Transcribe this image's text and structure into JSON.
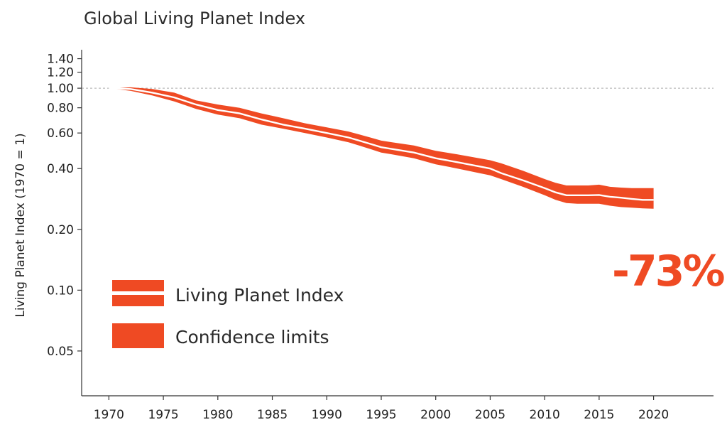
{
  "chart_data": {
    "type": "area",
    "title": "Global Living Planet Index",
    "ylabel": "Living Planet Index (1970 = 1)",
    "xlabel": "",
    "y_scale": "log",
    "xlim": [
      1967.5,
      2025.5
    ],
    "ylim": [
      0.03,
      1.55
    ],
    "x_ticks": [
      1970,
      1975,
      1980,
      1985,
      1990,
      1995,
      2000,
      2005,
      2010,
      2015,
      2020
    ],
    "x_tick_labels": [
      "1970",
      "1975",
      "1980",
      "1985",
      "1990",
      "1995",
      "2000",
      "2005",
      "2010",
      "2015",
      "2020"
    ],
    "y_ticks": [
      0.05,
      0.1,
      0.2,
      0.4,
      0.6,
      0.8,
      1.0,
      1.2,
      1.4
    ],
    "y_tick_labels": [
      "0.05",
      "0.10",
      "0.20",
      "0.40",
      "0.60",
      "0.80",
      "1.00",
      "1.20",
      "1.40"
    ],
    "reference_line": 1.0,
    "x": [
      1970,
      1972,
      1974,
      1976,
      1978,
      1980,
      1982,
      1984,
      1986,
      1988,
      1990,
      1992,
      1994,
      1995,
      1996,
      1998,
      2000,
      2002,
      2004,
      2005,
      2006,
      2008,
      2010,
      2011,
      2012,
      2013,
      2014,
      2015,
      2016,
      2017,
      2018,
      2019,
      2020
    ],
    "series": [
      {
        "name": "Living Planet Index",
        "values": [
          1.0,
          0.99,
          0.95,
          0.9,
          0.83,
          0.78,
          0.75,
          0.7,
          0.66,
          0.63,
          0.6,
          0.57,
          0.53,
          0.51,
          0.5,
          0.48,
          0.45,
          0.43,
          0.41,
          0.4,
          0.38,
          0.35,
          0.32,
          0.305,
          0.295,
          0.295,
          0.295,
          0.296,
          0.29,
          0.287,
          0.283,
          0.28,
          0.28
        ]
      },
      {
        "name": "Confidence limits",
        "lower": [
          1.0,
          0.97,
          0.92,
          0.86,
          0.79,
          0.74,
          0.71,
          0.66,
          0.63,
          0.6,
          0.57,
          0.54,
          0.5,
          0.48,
          0.47,
          0.45,
          0.42,
          0.4,
          0.38,
          0.37,
          0.355,
          0.325,
          0.295,
          0.28,
          0.27,
          0.268,
          0.268,
          0.268,
          0.262,
          0.258,
          0.256,
          0.254,
          0.253
        ],
        "upper": [
          1.0,
          1.01,
          0.99,
          0.95,
          0.87,
          0.83,
          0.8,
          0.75,
          0.71,
          0.67,
          0.64,
          0.61,
          0.57,
          0.55,
          0.54,
          0.52,
          0.49,
          0.47,
          0.45,
          0.44,
          0.425,
          0.39,
          0.355,
          0.34,
          0.33,
          0.33,
          0.33,
          0.333,
          0.325,
          0.322,
          0.32,
          0.32,
          0.32
        ]
      }
    ],
    "annotation": "-73%",
    "legend": [
      {
        "label": "Living Planet Index",
        "kind": "line"
      },
      {
        "label": "Confidence limits",
        "kind": "band"
      }
    ],
    "legend_position": "bottom-left",
    "colors": {
      "band": "#ef4a23",
      "line": "#ffffff",
      "annotation": "#ef4a23",
      "reference": "#aaaaaa",
      "axis": "#333333"
    }
  }
}
